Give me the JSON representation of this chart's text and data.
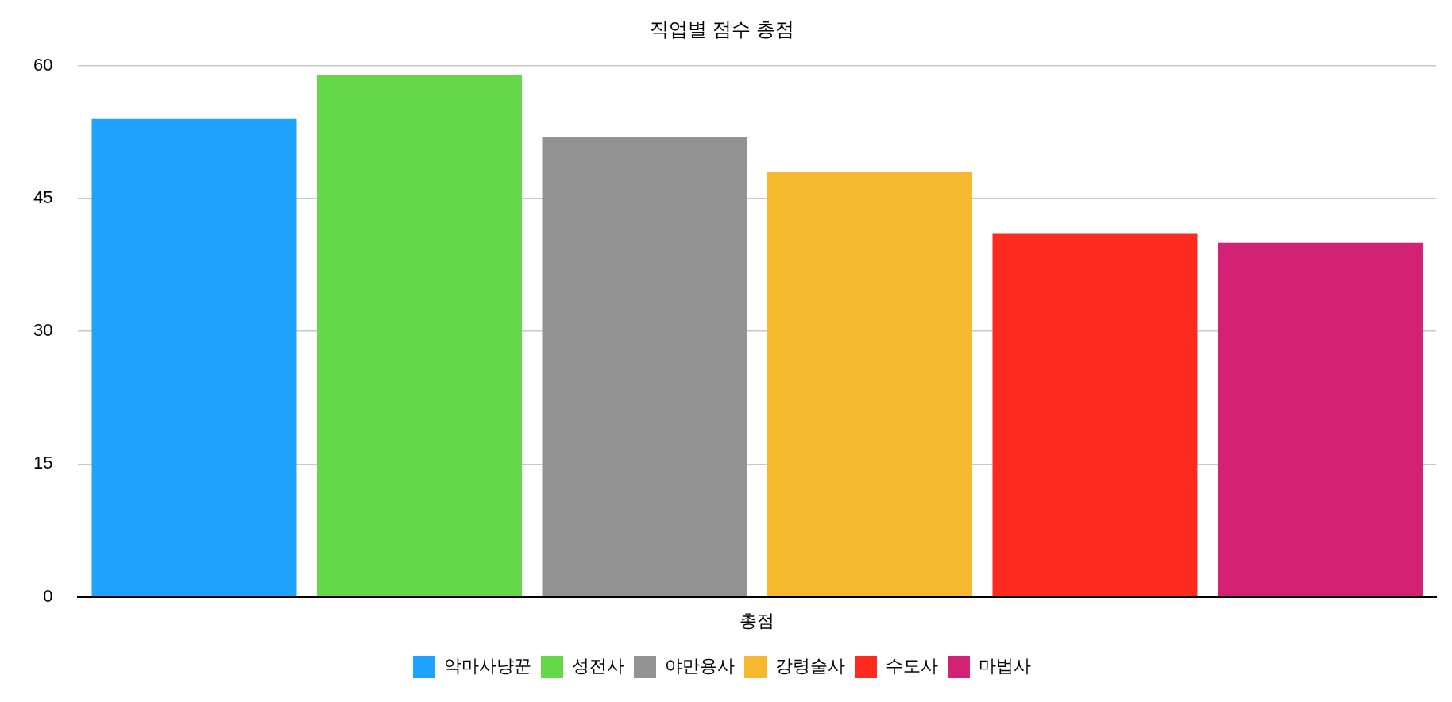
{
  "chart_data": {
    "type": "bar",
    "title": "직업별 점수 총점",
    "categories": [
      "총점"
    ],
    "series": [
      {
        "name": "악마사냥꾼",
        "color": "#1ea4fc",
        "values": [
          54
        ]
      },
      {
        "name": "성전사",
        "color": "#64d846",
        "values": [
          59
        ]
      },
      {
        "name": "야만용사",
        "color": "#939393",
        "values": [
          52
        ]
      },
      {
        "name": "강령술사",
        "color": "#f6b82e",
        "values": [
          48
        ]
      },
      {
        "name": "수도사",
        "color": "#fd2a20",
        "values": [
          41
        ]
      },
      {
        "name": "마법사",
        "color": "#d32276",
        "values": [
          40
        ]
      }
    ],
    "ylim": [
      0,
      60
    ],
    "yticks": [
      0,
      15,
      30,
      45,
      60
    ],
    "grid": "y",
    "legend": "bottom"
  }
}
